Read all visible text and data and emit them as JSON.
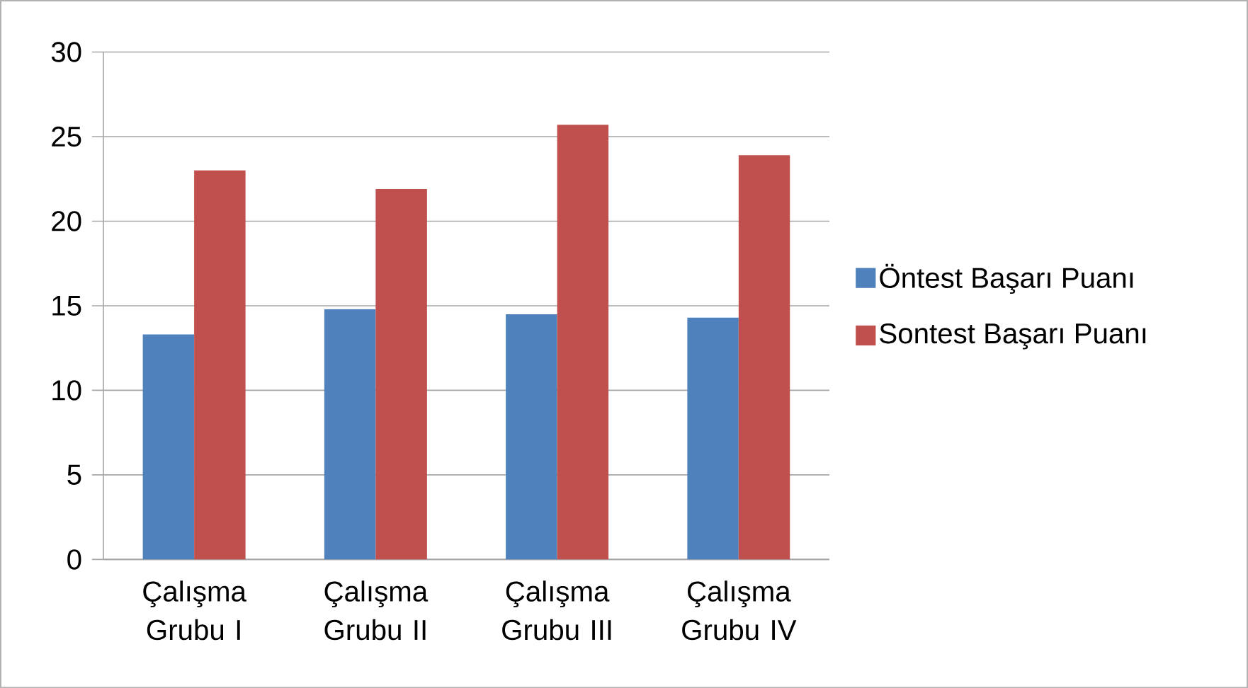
{
  "chart_data": {
    "type": "bar",
    "categories": [
      "Çalışma Grubu I",
      "Çalışma Grubu II",
      "Çalışma Grubu III",
      "Çalışma Grubu IV"
    ],
    "series": [
      {
        "name": "Öntest Başarı Puanı",
        "color": "#4f81bd",
        "values": [
          13.3,
          14.8,
          14.5,
          14.3
        ]
      },
      {
        "name": "Sontest Başarı Puanı",
        "color": "#c0504d",
        "values": [
          23.0,
          21.9,
          25.7,
          23.9
        ]
      }
    ],
    "ylim": [
      0,
      30
    ],
    "yticks": [
      0,
      5,
      10,
      15,
      20,
      25,
      30
    ],
    "grid": "y",
    "legend": "right"
  }
}
